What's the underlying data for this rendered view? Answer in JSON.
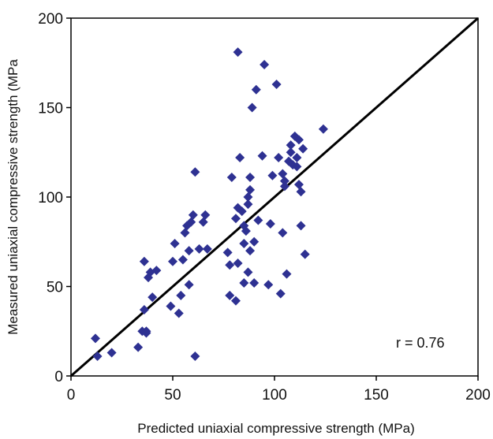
{
  "chart_data": {
    "type": "scatter",
    "title": "",
    "xlabel": "Predicted uniaxial compressive strength (MPa)",
    "ylabel": "Measured uniaxial compressive strength (MPa",
    "xlim": [
      0,
      200
    ],
    "ylim": [
      0,
      200
    ],
    "x_ticks": [
      "0",
      "50",
      "100",
      "150",
      "200"
    ],
    "y_ticks": [
      "0",
      "50",
      "100",
      "150",
      "200"
    ],
    "grid": false,
    "legend": "none",
    "marker_color": "#2E3192",
    "marker_shape": "diamond",
    "annotation": "r = 0.76",
    "reference_line": {
      "label": "",
      "from": [
        0,
        0
      ],
      "to": [
        200,
        200
      ],
      "color": "#000000"
    },
    "points": [
      [
        12,
        21
      ],
      [
        13,
        11
      ],
      [
        20,
        13
      ],
      [
        33,
        16
      ],
      [
        35,
        25
      ],
      [
        36,
        37
      ],
      [
        37,
        25
      ],
      [
        36,
        64
      ],
      [
        37,
        24
      ],
      [
        38,
        55
      ],
      [
        39,
        58
      ],
      [
        40,
        44
      ],
      [
        42,
        59
      ],
      [
        49,
        39
      ],
      [
        50,
        64
      ],
      [
        51,
        74
      ],
      [
        53,
        35
      ],
      [
        54,
        45
      ],
      [
        55,
        65
      ],
      [
        56,
        80
      ],
      [
        57,
        84
      ],
      [
        58,
        51
      ],
      [
        58,
        70
      ],
      [
        59,
        86
      ],
      [
        60,
        90
      ],
      [
        61,
        11
      ],
      [
        61,
        114
      ],
      [
        63,
        71
      ],
      [
        65,
        86
      ],
      [
        66,
        90
      ],
      [
        67,
        71
      ],
      [
        77,
        69
      ],
      [
        78,
        45
      ],
      [
        78,
        62
      ],
      [
        79,
        111
      ],
      [
        81,
        42
      ],
      [
        81,
        88
      ],
      [
        82,
        63
      ],
      [
        82,
        94
      ],
      [
        82,
        181
      ],
      [
        83,
        122
      ],
      [
        84,
        92
      ],
      [
        85,
        74
      ],
      [
        85,
        84
      ],
      [
        85,
        52
      ],
      [
        86,
        81
      ],
      [
        87,
        58
      ],
      [
        87,
        96
      ],
      [
        87,
        100
      ],
      [
        88,
        111
      ],
      [
        88,
        104
      ],
      [
        88,
        70
      ],
      [
        89,
        150
      ],
      [
        90,
        52
      ],
      [
        90,
        75
      ],
      [
        91,
        160
      ],
      [
        92,
        87
      ],
      [
        94,
        123
      ],
      [
        95,
        174
      ],
      [
        97,
        51
      ],
      [
        98,
        85
      ],
      [
        99,
        112
      ],
      [
        101,
        163
      ],
      [
        102,
        122
      ],
      [
        103,
        46
      ],
      [
        104,
        113
      ],
      [
        104,
        80
      ],
      [
        105,
        106
      ],
      [
        105,
        109
      ],
      [
        106,
        57
      ],
      [
        107,
        120
      ],
      [
        108,
        125
      ],
      [
        108,
        129
      ],
      [
        109,
        118
      ],
      [
        110,
        134
      ],
      [
        111,
        117
      ],
      [
        111,
        122
      ],
      [
        112,
        132
      ],
      [
        112,
        107
      ],
      [
        113,
        103
      ],
      [
        113,
        84
      ],
      [
        114,
        127
      ],
      [
        115,
        68
      ],
      [
        124,
        138
      ]
    ]
  }
}
